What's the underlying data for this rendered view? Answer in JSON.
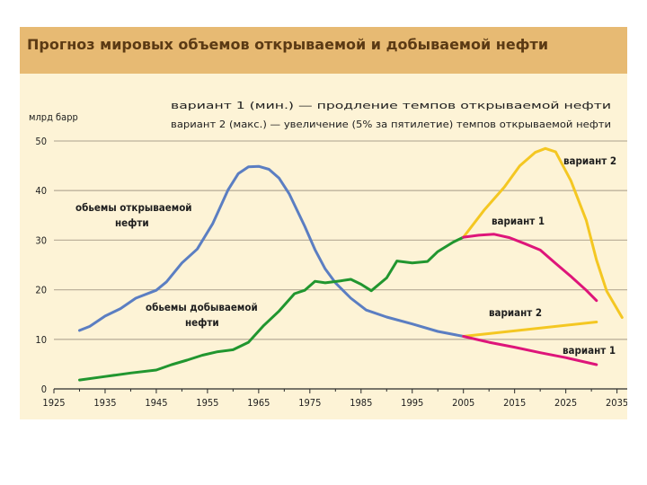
{
  "chart_data": {
    "type": "line",
    "title": "Прогноз мировых объемов открываемой и добываемой нефти",
    "ylabel": "млрд барр",
    "xlabel": "",
    "xlim": [
      1925,
      2037
    ],
    "ylim": [
      0,
      50
    ],
    "x_ticks": [
      1925,
      1935,
      1945,
      1955,
      1965,
      1975,
      1985,
      1995,
      2005,
      2015,
      2025,
      2035
    ],
    "y_ticks": [
      0,
      10,
      20,
      30,
      40,
      50
    ],
    "grid": "horizontal",
    "legend_notes": [
      "вариант 1 (мин.) — продление темпов открываемой нефти",
      "вариант 2 (макс.) — увеличение (5% за пятилетие) темпов открываемой нефти"
    ],
    "series": [
      {
        "name": "объемы открываемой нефти",
        "label": [
          "обьемы открываемой",
          "нефти"
        ],
        "color": "#5b7ec2",
        "x": [
          1930,
          1932,
          1935,
          1938,
          1941,
          1945,
          1947,
          1950,
          1953,
          1956,
          1959,
          1961,
          1963,
          1965,
          1967,
          1969,
          1971,
          1974,
          1976,
          1978,
          1980,
          1983,
          1986,
          1990,
          1995,
          2000,
          2005
        ],
        "y": [
          11.8,
          12.6,
          14.7,
          16.2,
          18.3,
          19.9,
          21.6,
          25.4,
          28.2,
          33.3,
          40.1,
          43.4,
          44.8,
          44.9,
          44.3,
          42.5,
          39.3,
          32.8,
          28.1,
          24.2,
          21.4,
          18.3,
          15.9,
          14.5,
          13.1,
          11.6,
          10.6
        ]
      },
      {
        "name": "объемы добываемой нефти",
        "label": [
          "обьемы добываемой",
          "нефти"
        ],
        "color": "#21962f",
        "x": [
          1930,
          1935,
          1940,
          1945,
          1948,
          1951,
          1954,
          1957,
          1960,
          1963,
          1966,
          1969,
          1972,
          1974,
          1976,
          1978,
          1981,
          1983,
          1985,
          1987,
          1990,
          1992,
          1995,
          1998,
          2000,
          2003,
          2005
        ],
        "y": [
          1.8,
          2.5,
          3.2,
          3.8,
          4.9,
          5.8,
          6.8,
          7.5,
          7.9,
          9.4,
          12.8,
          15.7,
          19.2,
          19.9,
          21.7,
          21.4,
          21.8,
          22.1,
          21.1,
          19.8,
          22.4,
          25.8,
          25.4,
          25.7,
          27.7,
          29.6,
          30.6
        ]
      },
      {
        "name": "",
        "label": [
          "вариант 2"
        ],
        "color": "#f4c722",
        "x": [
          2005,
          2009,
          2013,
          2016,
          2019,
          2021,
          2023,
          2026,
          2029,
          2031,
          2033,
          2036
        ],
        "y": [
          30.6,
          36.0,
          40.7,
          45.0,
          47.7,
          48.5,
          47.8,
          42.0,
          34.0,
          26.0,
          19.7,
          14.4
        ]
      },
      {
        "name": "",
        "label": [
          "вариант 1"
        ],
        "color": "#de157a",
        "x": [
          2005,
          2008,
          2011,
          2014,
          2017,
          2020,
          2023,
          2026,
          2029,
          2031
        ],
        "y": [
          30.6,
          31.0,
          31.2,
          30.5,
          29.3,
          28.0,
          25.3,
          22.7,
          19.9,
          17.8
        ]
      },
      {
        "name": "",
        "label": [
          "вариант 2"
        ],
        "color": "#f4c722",
        "x": [
          2005,
          2031
        ],
        "y": [
          10.6,
          13.5
        ]
      },
      {
        "name": "",
        "label": [
          "вариант 1"
        ],
        "color": "#de157a",
        "x": [
          2005,
          2010,
          2015,
          2020,
          2025,
          2031
        ],
        "y": [
          10.6,
          9.4,
          8.4,
          7.3,
          6.3,
          4.9
        ]
      }
    ]
  }
}
